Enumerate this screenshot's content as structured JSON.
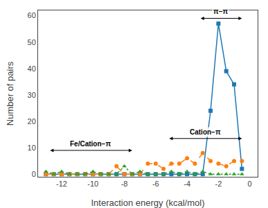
{
  "chart_data": {
    "type": "line",
    "xlabel": "Interaction energy (kcal/mol)",
    "ylabel": "Number of pairs",
    "x": [
      -13,
      -12.5,
      -12,
      -11.5,
      -11,
      -10.5,
      -10,
      -9.5,
      -9,
      -8.5,
      -8,
      -7.5,
      -7,
      -6.5,
      -6,
      -5.5,
      -5,
      -4.5,
      -4,
      -3.5,
      -3,
      -2.5,
      -2,
      -1.5,
      -1,
      -0.5
    ],
    "series": [
      {
        "line_style": "solid",
        "marker": "square",
        "values": [
          0,
          0,
          0,
          0,
          0,
          0,
          0,
          0,
          0,
          0,
          0,
          0,
          0,
          0,
          0,
          0,
          0,
          0,
          0,
          0,
          0,
          24,
          57,
          39,
          34,
          2
        ]
      },
      {
        "line_style": "dashed",
        "marker": "circle",
        "values": [
          0,
          0,
          0,
          0,
          0,
          0,
          0,
          0,
          0,
          3,
          0,
          0,
          0,
          4,
          4,
          2,
          4,
          4,
          6,
          4,
          8,
          5,
          4,
          3,
          5,
          5
        ]
      },
      {
        "line_style": "dotted",
        "marker": "triangle",
        "values": [
          1,
          0,
          1,
          0,
          0,
          0,
          1,
          0,
          0,
          0,
          3,
          0,
          1,
          0,
          0,
          0,
          1,
          0,
          1,
          0,
          1,
          0,
          0,
          0,
          0,
          0
        ]
      }
    ],
    "xlim": [
      -13.5,
      0.5
    ],
    "ylim": [
      -1,
      62
    ],
    "xticks": [
      -12,
      -10,
      -8,
      -6,
      -4,
      -2,
      0
    ],
    "yticks": [
      0,
      10,
      20,
      30,
      40,
      50,
      60
    ],
    "grid": false,
    "annotations": [
      {
        "text": "Fe/Cation−π",
        "x": [
          -12.8,
          -7.5
        ],
        "y": 9
      },
      {
        "text": "Cation−π",
        "x": [
          -5.2,
          -0.5
        ],
        "y": 13.5
      },
      {
        "text": "π−π",
        "x": [
          -3.2,
          -0.5
        ],
        "y": 59
      }
    ]
  }
}
